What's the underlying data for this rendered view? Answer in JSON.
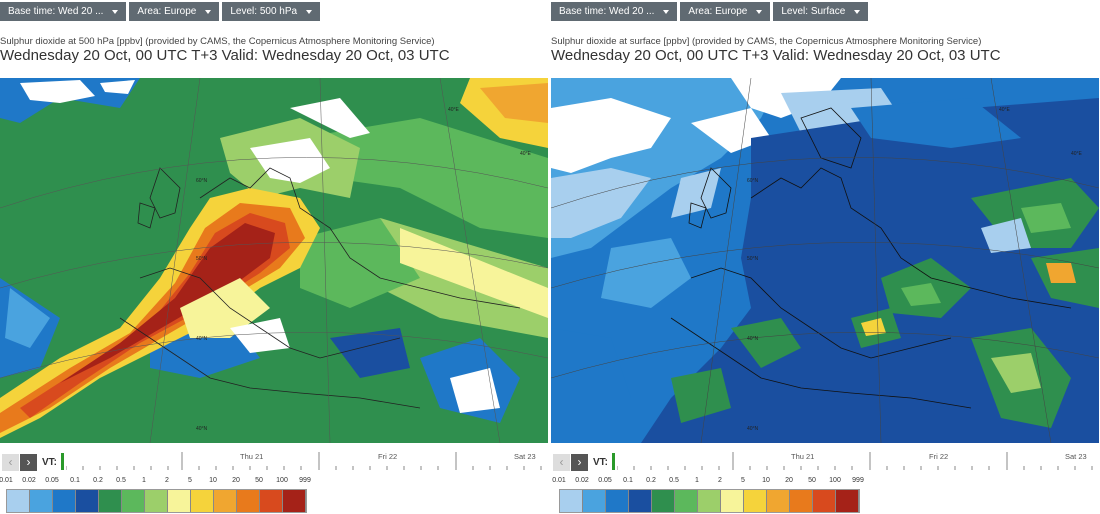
{
  "left": {
    "toolbar": {
      "base_time": "Base time: Wed 20 ...",
      "area": "Area: Europe",
      "level": "Level: 500 hPa"
    },
    "subtitle": "Sulphur dioxide at 500 hPa [ppbv] (provided by CAMS, the Copernicus Atmosphere Monitoring Service)",
    "title": "Wednesday 20 Oct, 00 UTC T+3 Valid: Wednesday 20 Oct, 03 UTC",
    "timeline": {
      "vt_label": "VT:",
      "days": [
        "Thu 21",
        "Fri 22",
        "Sat 23"
      ]
    },
    "legend_values": [
      "0.01",
      "0.02",
      "0.05",
      "0.1",
      "0.2",
      "0.5",
      "1",
      "2",
      "5",
      "10",
      "20",
      "50",
      "100",
      "999"
    ],
    "legend_colors": [
      "#a8cfee",
      "#4aa3df",
      "#1f78c8",
      "#1a4fa0",
      "#2f8f4e",
      "#5cb85c",
      "#9ccf6a",
      "#f7f49a",
      "#f5d33b",
      "#f0a630",
      "#e87a1c",
      "#d84a1e",
      "#a52218"
    ],
    "graticule_labels": [
      "40°E",
      "40°N",
      "40°N",
      "50°N",
      "60°N",
      "40°E"
    ]
  },
  "right": {
    "toolbar": {
      "base_time": "Base time: Wed 20 ...",
      "area": "Area: Europe",
      "level": "Level: Surface"
    },
    "subtitle": "Sulphur dioxide at surface [ppbv] (provided by CAMS, the Copernicus Atmosphere Monitoring Service)",
    "title": "Wednesday 20 Oct, 00 UTC T+3 Valid: Wednesday 20 Oct, 03 UTC",
    "timeline": {
      "vt_label": "VT:",
      "days": [
        "Thu 21",
        "Fri 22",
        "Sat 23"
      ]
    },
    "legend_values": [
      "0.01",
      "0.02",
      "0.05",
      "0.1",
      "0.2",
      "0.5",
      "1",
      "2",
      "5",
      "10",
      "20",
      "50",
      "100",
      "999"
    ],
    "legend_colors": [
      "#a8cfee",
      "#4aa3df",
      "#1f78c8",
      "#1a4fa0",
      "#2f8f4e",
      "#5cb85c",
      "#9ccf6a",
      "#f7f49a",
      "#f5d33b",
      "#f0a630",
      "#e87a1c",
      "#d84a1e",
      "#a52218"
    ],
    "graticule_labels": [
      "40°E",
      "40°N",
      "40°N",
      "50°N",
      "60°N",
      "40°E"
    ]
  },
  "colors": {
    "toolbar_bg": "#606a72",
    "vt_marker": "#2a9a2a"
  }
}
